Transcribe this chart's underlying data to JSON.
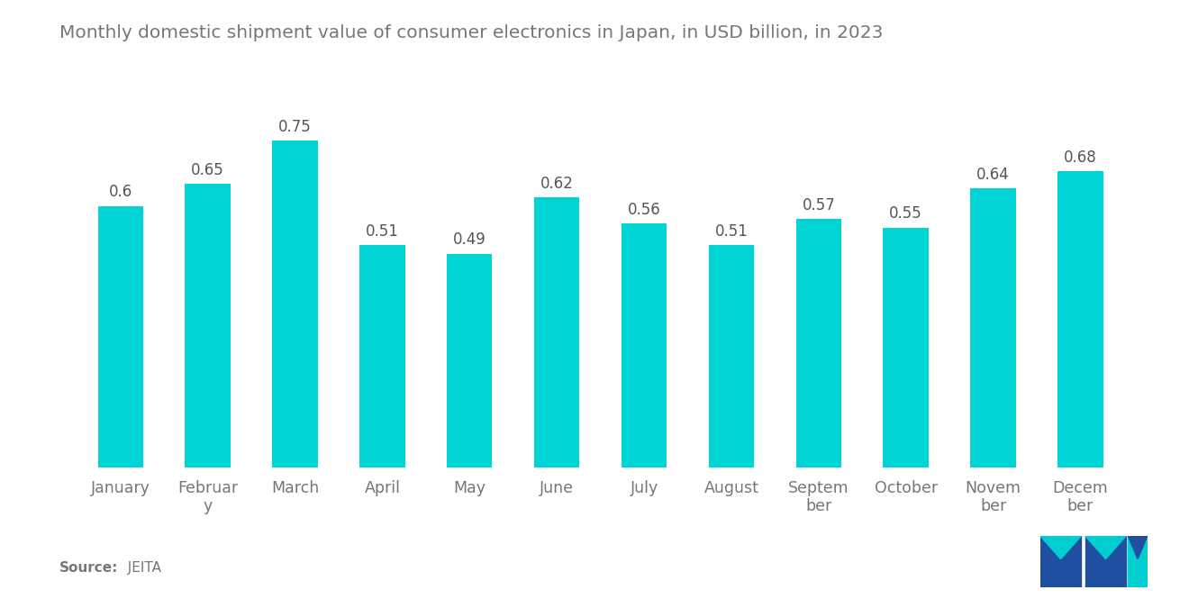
{
  "title": "Monthly domestic shipment value of consumer electronics in Japan, in USD billion, in 2023",
  "tick_labels": [
    "January",
    "Februar\ny",
    "March",
    "April",
    "May",
    "June",
    "July",
    "August",
    "Septem\nber",
    "October",
    "Novem\nber",
    "Decem\nber"
  ],
  "values": [
    0.6,
    0.65,
    0.75,
    0.51,
    0.49,
    0.62,
    0.56,
    0.51,
    0.57,
    0.55,
    0.64,
    0.68
  ],
  "bar_color": "#00D4D4",
  "background_color": "#ffffff",
  "title_color": "#777777",
  "label_color": "#777777",
  "value_label_color": "#555555",
  "source_label": "Source:",
  "source_value": "  JEITA",
  "ylim": [
    0,
    0.88
  ],
  "title_fontsize": 14.5,
  "label_fontsize": 12.5,
  "value_fontsize": 12,
  "source_fontsize": 11,
  "bar_width": 0.52,
  "logo_blue": "#1E4FA0",
  "logo_teal": "#00CED1"
}
